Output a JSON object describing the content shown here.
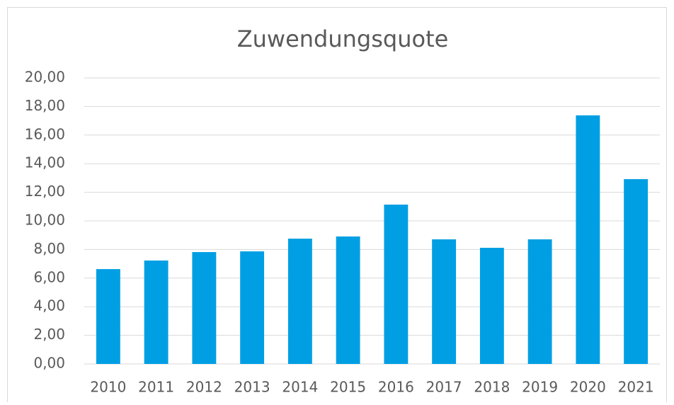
{
  "chart_data": {
    "type": "bar",
    "title": "Zuwendungsquote",
    "categories": [
      "2010",
      "2011",
      "2012",
      "2013",
      "2014",
      "2015",
      "2016",
      "2017",
      "2018",
      "2019",
      "2020",
      "2021"
    ],
    "values": [
      6.63,
      7.23,
      7.82,
      7.87,
      8.76,
      8.91,
      11.14,
      8.71,
      8.12,
      8.71,
      17.38,
      12.92
    ],
    "color": "#009fe3",
    "ylim": [
      0,
      20
    ],
    "yticks": [
      {
        "value": 0,
        "label": "0,00"
      },
      {
        "value": 2,
        "label": "2,00"
      },
      {
        "value": 4,
        "label": "4,00"
      },
      {
        "value": 6,
        "label": "6,00"
      },
      {
        "value": 8,
        "label": "8,00"
      },
      {
        "value": 10,
        "label": "10,00"
      },
      {
        "value": 12,
        "label": "12,00"
      },
      {
        "value": 14,
        "label": "14,00"
      },
      {
        "value": 16,
        "label": "16,00"
      },
      {
        "value": 18,
        "label": "18,00"
      },
      {
        "value": 20,
        "label": "20,00"
      }
    ],
    "grid": true
  }
}
